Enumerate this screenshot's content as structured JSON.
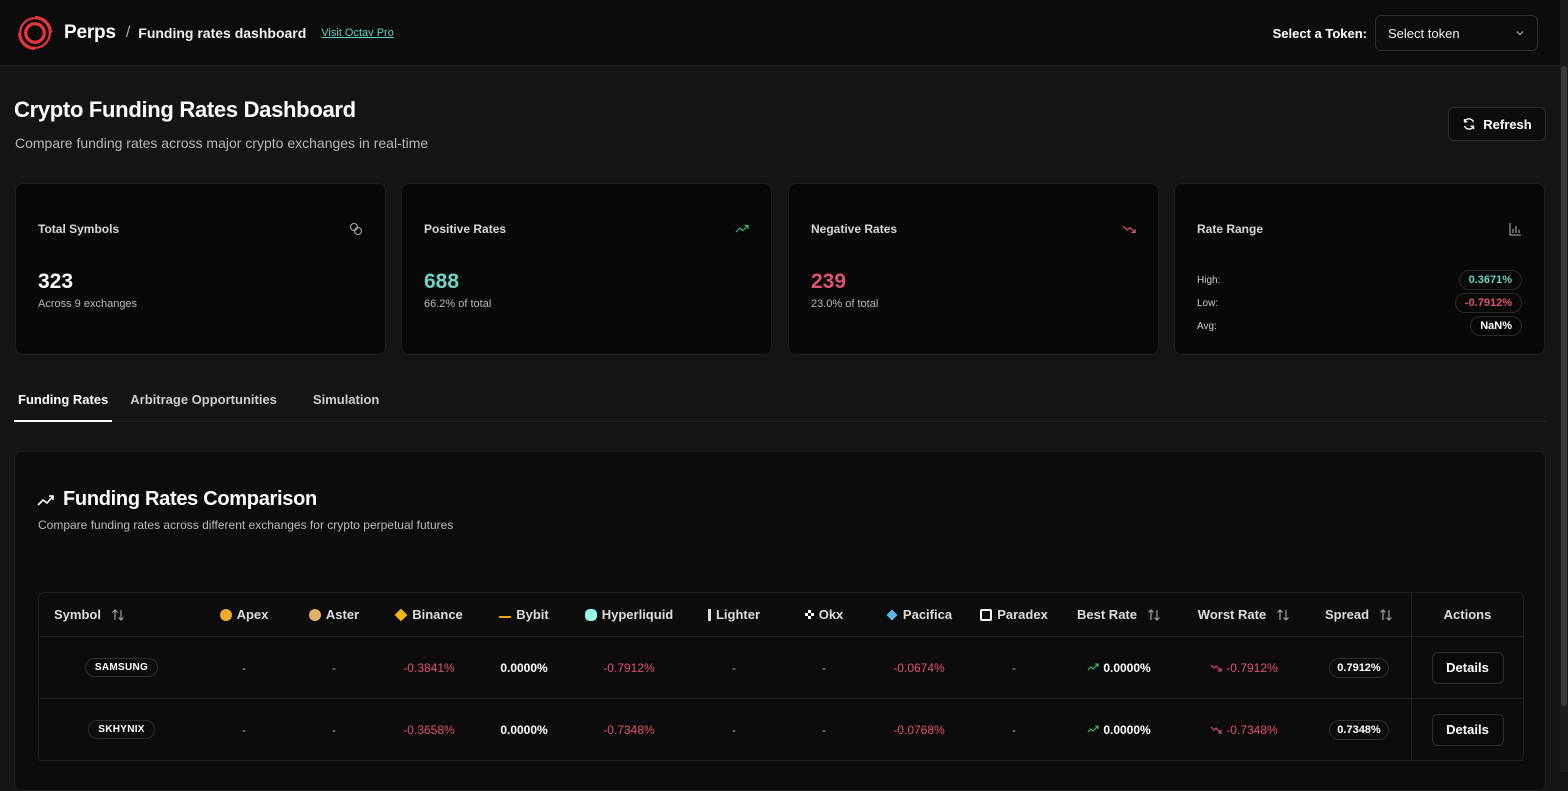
{
  "header": {
    "brand": "Perps",
    "separator": "/",
    "page": "Funding rates dashboard",
    "visit_link": "Visit Octav Pro",
    "token_label": "Select a Token:",
    "token_select": "Select token"
  },
  "page": {
    "title": "Crypto Funding Rates Dashboard",
    "subtitle": "Compare funding rates across major crypto exchanges in real-time",
    "refresh_label": "Refresh"
  },
  "cards": {
    "total": {
      "label": "Total Symbols",
      "value": "323",
      "sub": "Across 9 exchanges"
    },
    "positive": {
      "label": "Positive Rates",
      "value": "688",
      "sub": "66.2% of total"
    },
    "negative": {
      "label": "Negative Rates",
      "value": "239",
      "sub": "23.0% of total"
    },
    "range": {
      "label": "Rate Range",
      "high_label": "High:",
      "high": "0.3671%",
      "low_label": "Low:",
      "low": "-0.7912%",
      "avg_label": "Avg:",
      "avg": "NaN%"
    }
  },
  "tabs": [
    "Funding Rates",
    "Arbitrage Opportunities",
    "Simulation"
  ],
  "panel": {
    "title": "Funding Rates Comparison",
    "subtitle": "Compare funding rates across different exchanges for crypto perpetual futures"
  },
  "table": {
    "headers": {
      "symbol": "Symbol",
      "apex": "Apex",
      "aster": "Aster",
      "binance": "Binance",
      "bybit": "Bybit",
      "hyperliquid": "Hyperliquid",
      "lighter": "Lighter",
      "okx": "Okx",
      "pacifica": "Pacifica",
      "paradex": "Paradex",
      "best": "Best Rate",
      "worst": "Worst Rate",
      "spread": "Spread",
      "actions": "Actions"
    },
    "rows": [
      {
        "symbol": "SAMSUNG",
        "apex": "-",
        "aster": "-",
        "binance": "-0.3841%",
        "bybit": "0.0000%",
        "hyperliquid": "-0.7912%",
        "lighter": "-",
        "okx": "-",
        "pacifica": "-0.0674%",
        "paradex": "-",
        "best": "0.0000%",
        "worst": "-0.7912%",
        "spread": "0.7912%",
        "action": "Details"
      },
      {
        "symbol": "SKHYNIX",
        "apex": "-",
        "aster": "-",
        "binance": "-0.3658%",
        "bybit": "0.0000%",
        "hyperliquid": "-0.7348%",
        "lighter": "-",
        "okx": "-",
        "pacifica": "-0.0768%",
        "paradex": "-",
        "best": "0.0000%",
        "worst": "-0.7348%",
        "spread": "0.7348%",
        "action": "Details"
      }
    ]
  },
  "colors": {
    "positive": "#6fd3c7",
    "negative": "#e05272",
    "link": "#5fd0c8",
    "brand_red": "#e8343d",
    "trend_up": "#3ec46d"
  }
}
